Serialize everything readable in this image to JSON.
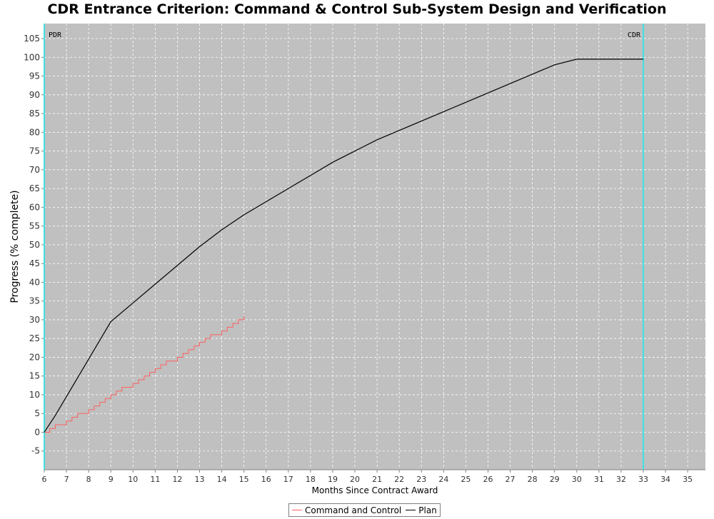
{
  "chart_data": {
    "type": "line",
    "title": "CDR Entrance Criterion: Command & Control Sub-System Design and Verification",
    "xlabel": "Months Since Contract Award",
    "ylabel": "Progress (% complete)",
    "xlim": [
      6,
      35.8
    ],
    "ylim": [
      -10,
      109
    ],
    "x_ticks": [
      6,
      7,
      8,
      9,
      10,
      11,
      12,
      13,
      14,
      15,
      16,
      17,
      18,
      19,
      20,
      21,
      22,
      23,
      24,
      25,
      26,
      27,
      28,
      29,
      30,
      31,
      32,
      33,
      34,
      35
    ],
    "y_ticks": [
      -5,
      0,
      5,
      10,
      15,
      20,
      25,
      30,
      35,
      40,
      45,
      50,
      55,
      60,
      65,
      70,
      75,
      80,
      85,
      90,
      95,
      100,
      105
    ],
    "grid": true,
    "background": "#c0c0c0",
    "legend_position": "bottom-center",
    "series": [
      {
        "name": "Command and Control",
        "color": "#ff6060",
        "step": true,
        "x": [
          6.0,
          6.25,
          6.5,
          6.75,
          7.0,
          7.25,
          7.5,
          7.75,
          8.0,
          8.25,
          8.5,
          8.75,
          9.0,
          9.25,
          9.5,
          9.75,
          10.0,
          10.25,
          10.5,
          10.75,
          11.0,
          11.25,
          11.5,
          11.75,
          12.0,
          12.25,
          12.5,
          12.75,
          13.0,
          13.25,
          13.5,
          13.75,
          14.0,
          14.25,
          14.5,
          14.75,
          15.0
        ],
        "y": [
          0,
          1,
          2,
          2,
          3,
          4,
          5,
          5,
          6,
          7,
          8,
          9,
          10,
          11,
          12,
          12,
          13,
          14,
          15,
          16,
          17,
          18,
          19,
          19,
          20,
          21,
          22,
          23,
          24,
          25,
          26,
          26,
          27,
          28,
          29,
          30,
          31
        ]
      },
      {
        "name": "Plan",
        "color": "#000000",
        "step": false,
        "x": [
          6.0,
          6.5,
          7.0,
          7.5,
          8.0,
          8.5,
          9.0,
          10.0,
          11.0,
          12.0,
          13.0,
          14.0,
          15.0,
          16.0,
          17.0,
          18.0,
          19.0,
          20.0,
          21.0,
          22.0,
          23.0,
          24.0,
          25.0,
          26.0,
          27.0,
          28.0,
          29.0,
          30.0,
          33.0
        ],
        "y": [
          0,
          4.5,
          9.5,
          14.5,
          19.5,
          24.5,
          29.5,
          34.5,
          39.5,
          44.5,
          49.5,
          54,
          58,
          61.5,
          65,
          68.5,
          72,
          75,
          78,
          80.5,
          83,
          85.5,
          88,
          90.5,
          93,
          95.5,
          98,
          99.5,
          99.5
        ]
      }
    ],
    "markers": [
      {
        "label": "PDR",
        "x": 6,
        "color": "#40e0e0"
      },
      {
        "label": "CDR",
        "x": 33,
        "color": "#40e0e0"
      }
    ]
  }
}
